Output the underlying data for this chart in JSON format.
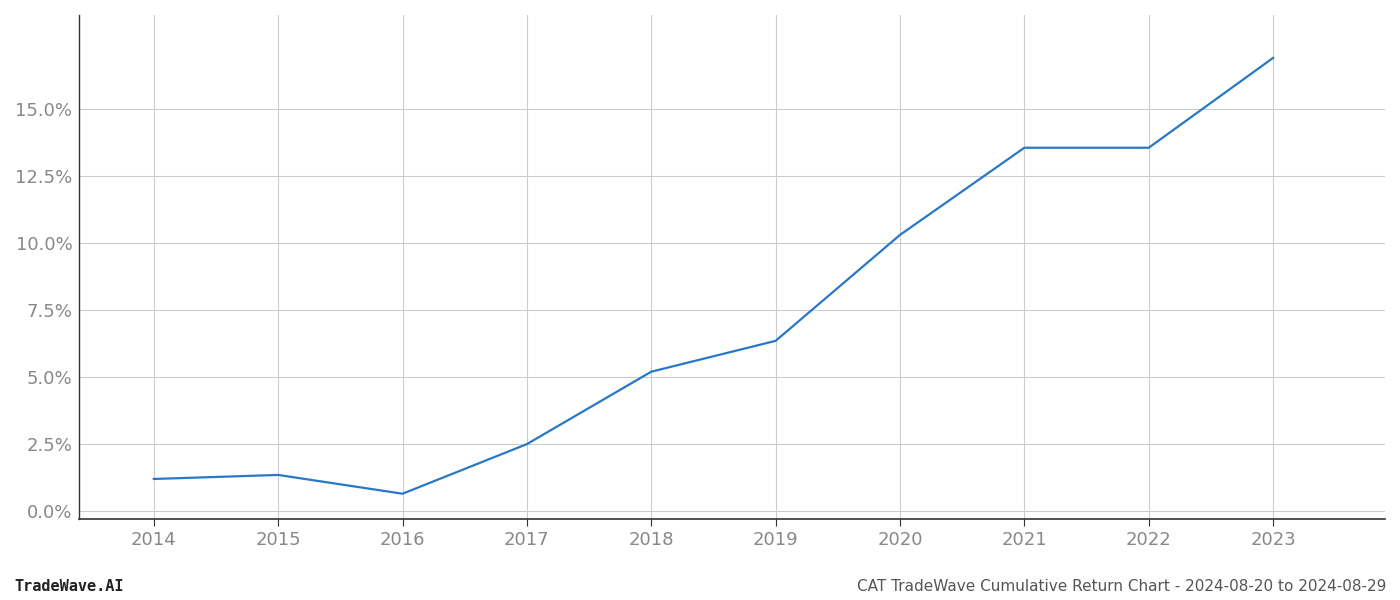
{
  "x_years": [
    2014,
    2015,
    2016,
    2017,
    2018,
    2019,
    2020,
    2021,
    2022,
    2023
  ],
  "y_values": [
    1.2,
    1.35,
    0.65,
    2.5,
    5.2,
    6.35,
    10.3,
    13.55,
    13.55,
    16.9
  ],
  "line_color": "#2878c8",
  "line_width": 1.6,
  "background_color": "#ffffff",
  "grid_color": "#cccccc",
  "ylabel_ticks": [
    0.0,
    2.5,
    5.0,
    7.5,
    10.0,
    12.5,
    15.0
  ],
  "ylim": [
    -0.3,
    18.5
  ],
  "xlim": [
    2013.4,
    2023.9
  ],
  "footer_left": "TradeWave.AI",
  "footer_right": "CAT TradeWave Cumulative Return Chart - 2024-08-20 to 2024-08-29",
  "tick_fontsize": 13,
  "footer_fontsize": 11,
  "tick_color": "#aaaaaa"
}
